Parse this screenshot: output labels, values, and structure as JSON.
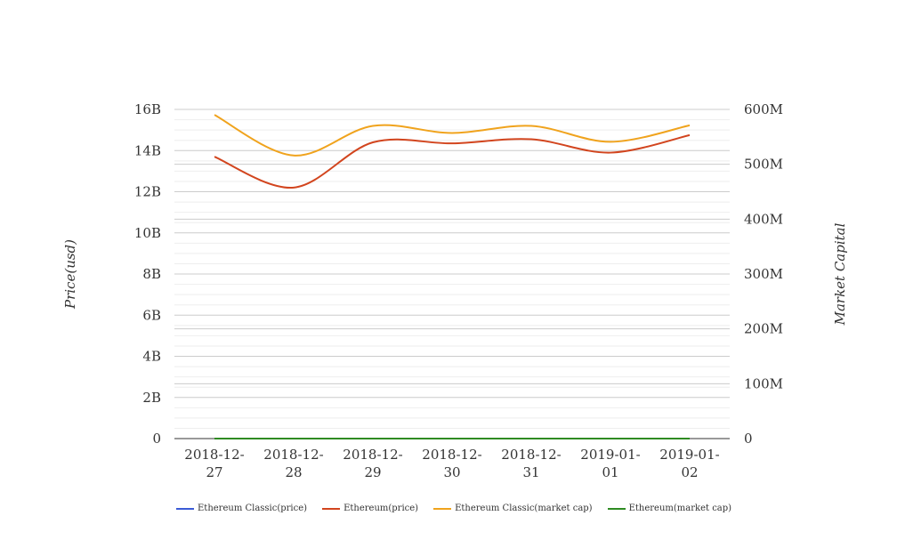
{
  "chart_data": {
    "type": "line",
    "x": [
      "2018-12-27",
      "2018-12-28",
      "2018-12-29",
      "2018-12-30",
      "2018-12-31",
      "2019-01-01",
      "2019-01-02"
    ],
    "x_tick_labels": [
      [
        "2018-12-",
        "27"
      ],
      [
        "2018-12-",
        "28"
      ],
      [
        "2018-12-",
        "29"
      ],
      [
        "2018-12-",
        "30"
      ],
      [
        "2018-12-",
        "31"
      ],
      [
        "2019-01-",
        "01"
      ],
      [
        "2019-01-",
        "02"
      ]
    ],
    "y_left": {
      "label": "Price(usd)",
      "ylim": [
        0,
        16000000000
      ],
      "ticks": [
        0,
        2000000000,
        4000000000,
        6000000000,
        8000000000,
        10000000000,
        12000000000,
        14000000000,
        16000000000
      ],
      "tick_labels": [
        "0",
        "2B",
        "4B",
        "6B",
        "8B",
        "10B",
        "12B",
        "14B",
        "16B"
      ]
    },
    "y_right": {
      "label": "Market Capital",
      "ylim": [
        0,
        600000000
      ],
      "ticks": [
        0,
        100000000,
        200000000,
        300000000,
        400000000,
        500000000,
        600000000
      ],
      "tick_labels": [
        "0",
        "100M",
        "200M",
        "300M",
        "400M",
        "500M",
        "600M"
      ]
    },
    "grid": true,
    "legend_position": "bottom",
    "series": [
      {
        "name": "Ethereum Classic(price)",
        "color": "#3b5bd6",
        "axis": "left",
        "values": [
          4.9,
          4.0,
          5.1,
          5.0,
          4.9,
          5.0,
          4.8
        ]
      },
      {
        "name": "Ethereum(price)",
        "color": "#d2451e",
        "axis": "left",
        "values": [
          13700000000,
          12200000000,
          14400000000,
          14350000000,
          14550000000,
          13900000000,
          14750000000
        ]
      },
      {
        "name": "Ethereum Classic(market cap)",
        "color": "#f0a31d",
        "axis": "right",
        "values": [
          590000000,
          516000000,
          570000000,
          557000000,
          570000000,
          541000000,
          571000000
        ]
      },
      {
        "name": "Ethereum(market cap)",
        "color": "#2e8b22",
        "axis": "right",
        "values": [
          137,
          122,
          144,
          143,
          145,
          139,
          147
        ]
      }
    ]
  }
}
